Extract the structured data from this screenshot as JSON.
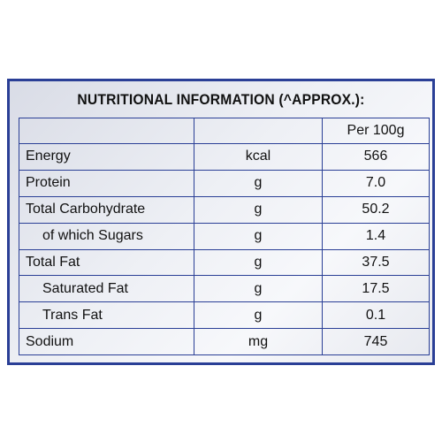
{
  "panel": {
    "title": "NUTRITIONAL INFORMATION (^APPROX.):",
    "border_color": "#2a3f96"
  },
  "table": {
    "header": {
      "label": "",
      "unit": "",
      "value": "Per 100g"
    },
    "rows": [
      {
        "label": "Energy",
        "unit": "kcal",
        "value": "566",
        "indent": false
      },
      {
        "label": "Protein",
        "unit": "g",
        "value": "7.0",
        "indent": false
      },
      {
        "label": "Total Carbohydrate",
        "unit": "g",
        "value": "50.2",
        "indent": false
      },
      {
        "label": "of which Sugars",
        "unit": "g",
        "value": "1.4",
        "indent": true
      },
      {
        "label": "Total Fat",
        "unit": "g",
        "value": "37.5",
        "indent": false
      },
      {
        "label": "Saturated Fat",
        "unit": "g",
        "value": "17.5",
        "indent": true
      },
      {
        "label": "Trans Fat",
        "unit": "g",
        "value": "0.1",
        "indent": true
      },
      {
        "label": "Sodium",
        "unit": "mg",
        "value": "745",
        "indent": false
      }
    ]
  }
}
